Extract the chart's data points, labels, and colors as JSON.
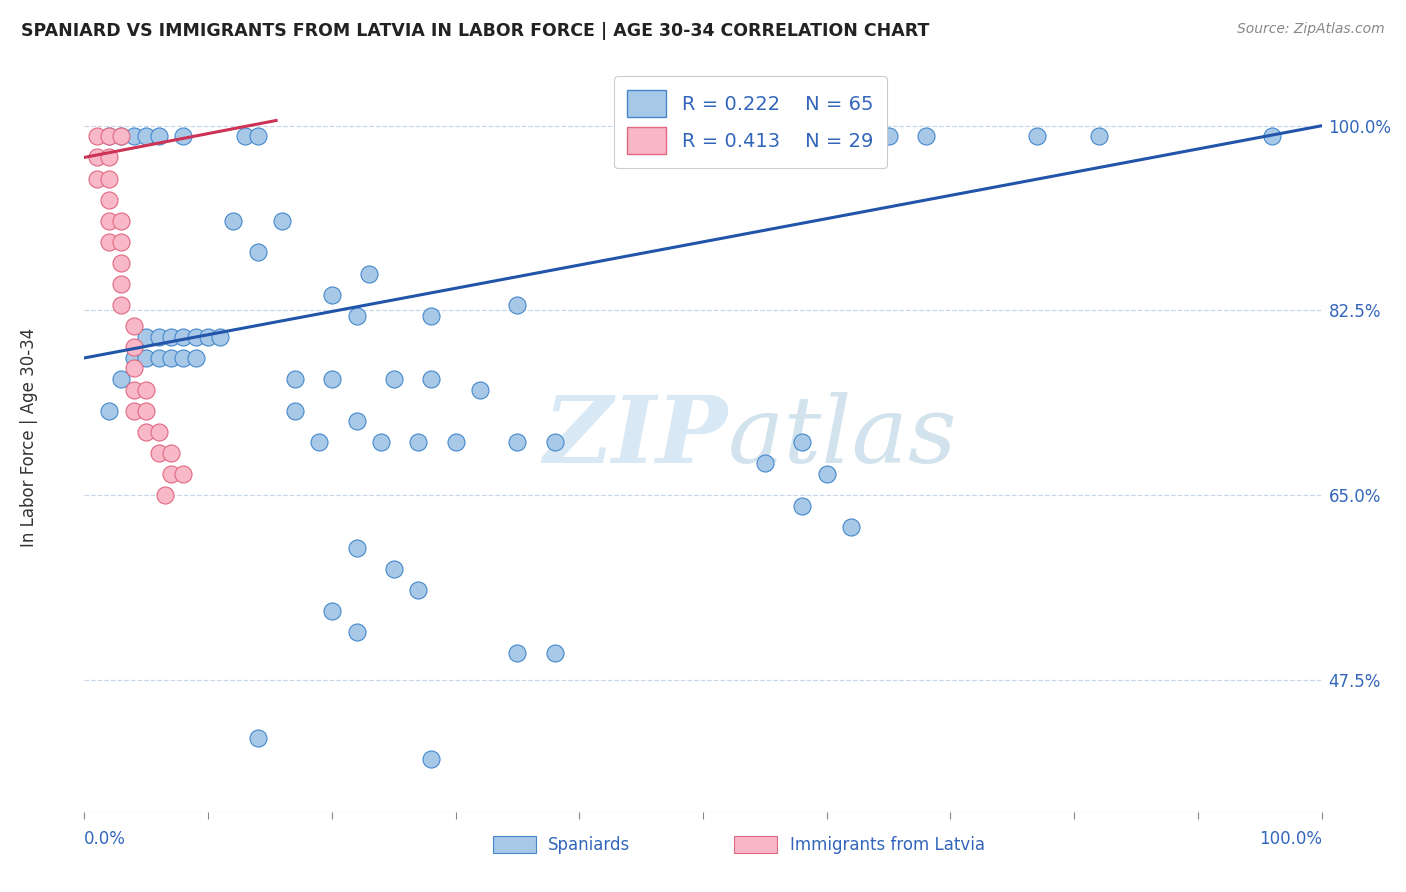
{
  "title": "SPANIARD VS IMMIGRANTS FROM LATVIA IN LABOR FORCE | AGE 30-34 CORRELATION CHART",
  "source": "Source: ZipAtlas.com",
  "ylabel": "In Labor Force | Age 30-34",
  "watermark_zip": "ZIP",
  "watermark_atlas": "atlas",
  "legend_blue_r": "R = 0.222",
  "legend_blue_n": "N = 65",
  "legend_pink_r": "R = 0.413",
  "legend_pink_n": "N = 29",
  "blue_scatter_color": "#a8c8e8",
  "blue_edge_color": "#4488cc",
  "pink_scatter_color": "#f8b8c8",
  "pink_edge_color": "#e06880",
  "blue_line_color": "#2255aa",
  "pink_line_color": "#cc3355",
  "grid_color": "#c8d8e8",
  "ytick_color": "#3366bb",
  "xtick_label_color": "#3366bb",
  "blue_scatter": [
    [
      0.02,
      0.99
    ],
    [
      0.03,
      0.99
    ],
    [
      0.04,
      0.99
    ],
    [
      0.05,
      0.99
    ],
    [
      0.06,
      0.99
    ],
    [
      0.08,
      0.99
    ],
    [
      0.13,
      0.99
    ],
    [
      0.14,
      0.99
    ],
    [
      0.56,
      0.99
    ],
    [
      0.6,
      0.99
    ],
    [
      0.65,
      0.99
    ],
    [
      0.68,
      0.99
    ],
    [
      0.77,
      0.99
    ],
    [
      0.82,
      0.99
    ],
    [
      0.96,
      0.99
    ],
    [
      0.12,
      0.91
    ],
    [
      0.16,
      0.91
    ],
    [
      0.14,
      0.88
    ],
    [
      0.23,
      0.86
    ],
    [
      0.2,
      0.84
    ],
    [
      0.35,
      0.83
    ],
    [
      0.22,
      0.82
    ],
    [
      0.28,
      0.82
    ],
    [
      0.05,
      0.8
    ],
    [
      0.06,
      0.8
    ],
    [
      0.07,
      0.8
    ],
    [
      0.08,
      0.8
    ],
    [
      0.09,
      0.8
    ],
    [
      0.1,
      0.8
    ],
    [
      0.11,
      0.8
    ],
    [
      0.04,
      0.78
    ],
    [
      0.05,
      0.78
    ],
    [
      0.06,
      0.78
    ],
    [
      0.07,
      0.78
    ],
    [
      0.08,
      0.78
    ],
    [
      0.09,
      0.78
    ],
    [
      0.03,
      0.76
    ],
    [
      0.17,
      0.76
    ],
    [
      0.2,
      0.76
    ],
    [
      0.25,
      0.76
    ],
    [
      0.28,
      0.76
    ],
    [
      0.32,
      0.75
    ],
    [
      0.02,
      0.73
    ],
    [
      0.17,
      0.73
    ],
    [
      0.22,
      0.72
    ],
    [
      0.19,
      0.7
    ],
    [
      0.24,
      0.7
    ],
    [
      0.27,
      0.7
    ],
    [
      0.3,
      0.7
    ],
    [
      0.35,
      0.7
    ],
    [
      0.38,
      0.7
    ],
    [
      0.58,
      0.7
    ],
    [
      0.55,
      0.68
    ],
    [
      0.6,
      0.67
    ],
    [
      0.58,
      0.64
    ],
    [
      0.62,
      0.62
    ],
    [
      0.22,
      0.6
    ],
    [
      0.25,
      0.58
    ],
    [
      0.27,
      0.56
    ],
    [
      0.2,
      0.54
    ],
    [
      0.22,
      0.52
    ],
    [
      0.35,
      0.5
    ],
    [
      0.38,
      0.5
    ],
    [
      0.14,
      0.42
    ],
    [
      0.28,
      0.4
    ]
  ],
  "pink_scatter": [
    [
      0.01,
      0.99
    ],
    [
      0.02,
      0.99
    ],
    [
      0.03,
      0.99
    ],
    [
      0.01,
      0.97
    ],
    [
      0.02,
      0.97
    ],
    [
      0.01,
      0.95
    ],
    [
      0.02,
      0.95
    ],
    [
      0.02,
      0.93
    ],
    [
      0.02,
      0.91
    ],
    [
      0.03,
      0.91
    ],
    [
      0.02,
      0.89
    ],
    [
      0.03,
      0.89
    ],
    [
      0.03,
      0.87
    ],
    [
      0.03,
      0.85
    ],
    [
      0.03,
      0.83
    ],
    [
      0.04,
      0.81
    ],
    [
      0.04,
      0.79
    ],
    [
      0.04,
      0.77
    ],
    [
      0.04,
      0.75
    ],
    [
      0.05,
      0.75
    ],
    [
      0.04,
      0.73
    ],
    [
      0.05,
      0.73
    ],
    [
      0.05,
      0.71
    ],
    [
      0.06,
      0.71
    ],
    [
      0.06,
      0.69
    ],
    [
      0.07,
      0.69
    ],
    [
      0.07,
      0.67
    ],
    [
      0.08,
      0.67
    ],
    [
      0.065,
      0.65
    ]
  ],
  "blue_trend_x": [
    0.0,
    1.0
  ],
  "blue_trend_y": [
    0.78,
    1.0
  ],
  "pink_trend_x": [
    0.0,
    0.155
  ],
  "pink_trend_y": [
    0.97,
    1.005
  ],
  "xlim": [
    0.0,
    1.0
  ],
  "ylim": [
    0.35,
    1.06
  ],
  "yticks": [
    0.475,
    0.65,
    0.825,
    1.0
  ],
  "ytick_labels": [
    "47.5%",
    "65.0%",
    "82.5%",
    "100.0%"
  ],
  "xtick_positions": [
    0.0,
    0.1,
    0.2,
    0.3,
    0.4,
    0.5,
    0.6,
    0.7,
    0.8,
    0.9,
    1.0
  ],
  "xtick_labels": [
    "0.0%",
    "",
    "",
    "",
    "",
    "",
    "",
    "",
    "",
    "",
    "100.0%"
  ]
}
